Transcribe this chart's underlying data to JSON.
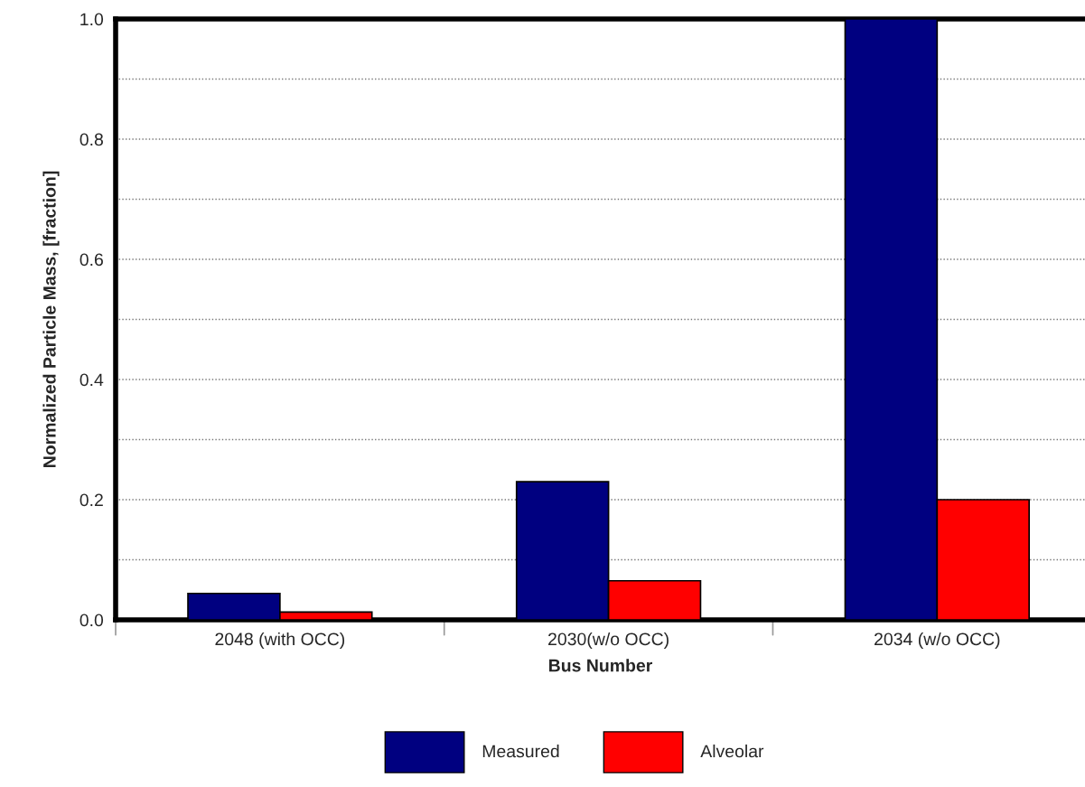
{
  "chart_data": {
    "type": "bar",
    "xlabel": "Bus Number",
    "ylabel": "Normalized Particle Mass, [fraction]",
    "categories": [
      "2048 (with OCC)",
      "2030(w/o OCC)",
      "2034 (w/o OCC)"
    ],
    "series": [
      {
        "name": "Measured",
        "color": "#000080",
        "values": [
          0.044,
          0.23,
          1.0
        ]
      },
      {
        "name": "Alveolar",
        "color": "#ff0000",
        "values": [
          0.013,
          0.065,
          0.2
        ]
      }
    ],
    "ylim": [
      0,
      1.0
    ],
    "yticks": [
      {
        "value": 0,
        "label": "0.0"
      },
      {
        "value": 0.1,
        "label": null
      },
      {
        "value": 0.2,
        "label": "0.2"
      },
      {
        "value": 0.3,
        "label": null
      },
      {
        "value": 0.4,
        "label": "0.4"
      },
      {
        "value": 0.5,
        "label": null
      },
      {
        "value": 0.6,
        "label": "0.6"
      },
      {
        "value": 0.7,
        "label": null
      },
      {
        "value": 0.8,
        "label": "0.8"
      },
      {
        "value": 0.9,
        "label": null
      },
      {
        "value": 1.0,
        "label": "1.0"
      }
    ],
    "grid": "y",
    "legend": "bottom"
  }
}
